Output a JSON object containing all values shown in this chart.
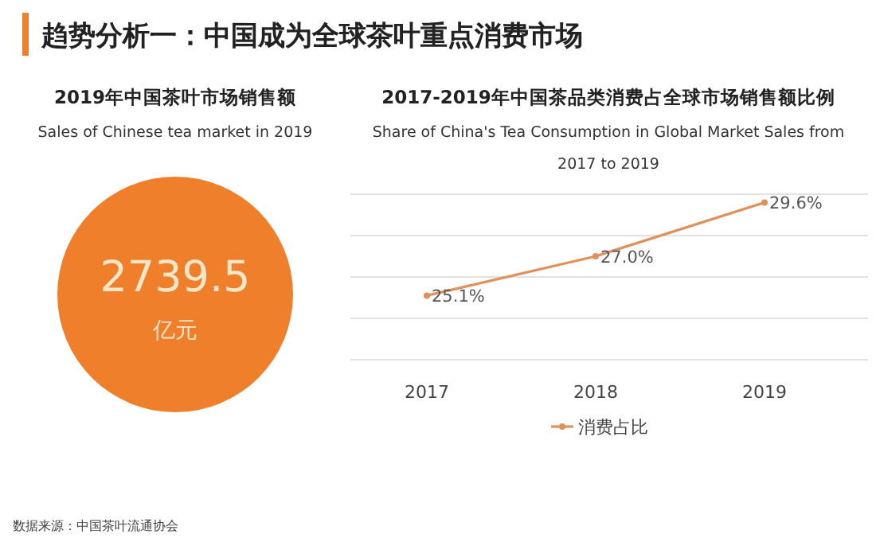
{
  "chart_data": [
    {
      "type": "other",
      "title": "2019年中国茶叶市场销售额",
      "subtitle": "Sales of Chinese tea market in 2019",
      "color": "#f07f2c",
      "annotations": [
        "趋势分析一：中国成为全球茶叶重点消费市场",
        "2739.5",
        "亿元",
        "数据来源：中国茶叶流通协会"
      ]
    },
    {
      "type": "line",
      "title": "2017-2019年中国茶品类消费占全球市场销售额比例",
      "subtitle": "Share of China's Tea Consumption in Global Market Sales from 2017 to 2019",
      "categories": [
        "2017",
        "2018",
        "2019"
      ],
      "series": [
        {
          "name": "消费占比",
          "color": "#e0905a",
          "values": [
            25.1,
            27.0,
            29.6
          ],
          "value_labels": [
            "25.1%",
            "27.0%",
            "29.6%"
          ]
        }
      ],
      "ylim": [
        22,
        30
      ],
      "yticks": [
        {
          "value": 22,
          "label": null
        },
        {
          "value": 24,
          "label": null
        },
        {
          "value": 26,
          "label": null
        },
        {
          "value": 28,
          "label": null
        },
        {
          "value": 30,
          "label": null
        }
      ],
      "tick_labels": "x",
      "grid": "y",
      "legend": "bottom",
      "marker": "circle",
      "line_style": "solid"
    }
  ]
}
